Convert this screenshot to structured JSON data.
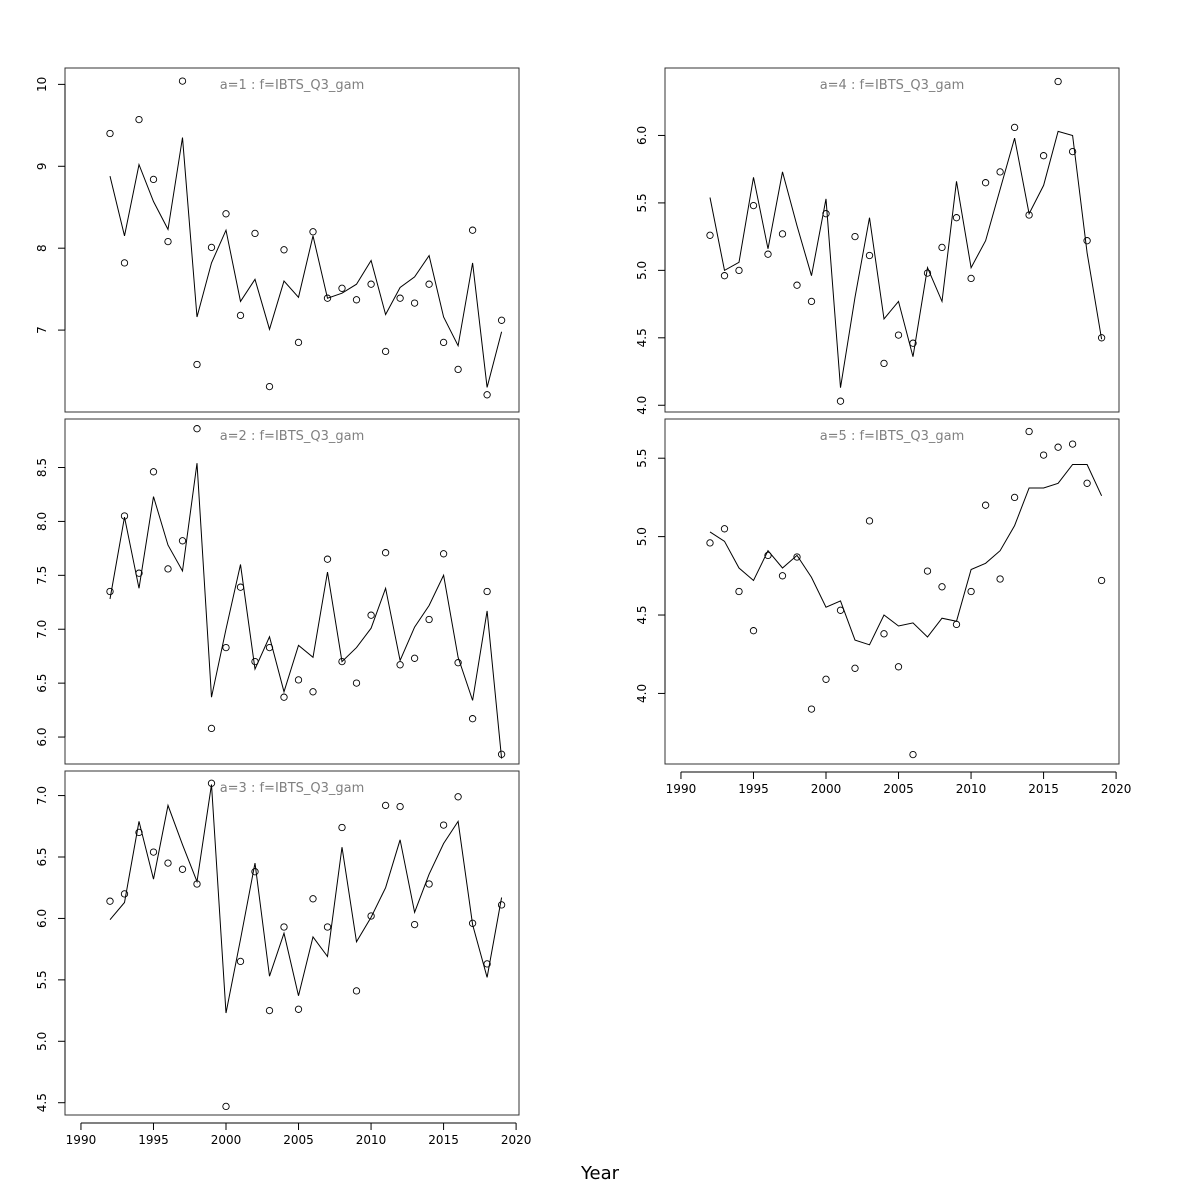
{
  "chart_data": {
    "type": "line",
    "xlabel": "Year",
    "x": [
      1992,
      1993,
      1994,
      1995,
      1996,
      1997,
      1998,
      1999,
      2000,
      2001,
      2002,
      2003,
      2004,
      2005,
      2006,
      2007,
      2008,
      2009,
      2010,
      2011,
      2012,
      2013,
      2014,
      2015,
      2016,
      2017,
      2018,
      2019
    ],
    "xticks": [
      1990,
      1995,
      2000,
      2005,
      2010,
      2015,
      2020
    ],
    "panels": [
      {
        "title": "a=1  :  f=IBTS_Q3_gam",
        "ylim": [
          6.0,
          10.2
        ],
        "yticks": [
          7,
          8,
          9,
          10
        ],
        "show_x_axis": false,
        "observed": [
          9.4,
          7.82,
          9.57,
          8.84,
          8.08,
          10.04,
          6.58,
          8.01,
          8.42,
          7.18,
          8.18,
          6.31,
          7.98,
          6.85,
          8.2,
          7.39,
          7.51,
          7.37,
          7.56,
          6.74,
          7.39,
          7.33,
          7.56,
          6.85,
          6.52,
          8.22,
          6.21,
          7.12
        ],
        "fitted": [
          8.88,
          8.15,
          9.02,
          8.57,
          8.23,
          9.35,
          7.16,
          7.82,
          8.22,
          7.35,
          7.62,
          7.01,
          7.6,
          7.4,
          8.15,
          7.39,
          7.45,
          7.56,
          7.85,
          7.19,
          7.52,
          7.65,
          7.91,
          7.16,
          6.81,
          7.82,
          6.3,
          6.98
        ]
      },
      {
        "title": "a=2  :  f=IBTS_Q3_gam",
        "ylim": [
          5.75,
          8.95
        ],
        "yticks": [
          6.0,
          6.5,
          7.0,
          7.5,
          8.0,
          8.5
        ],
        "show_x_axis": false,
        "observed": [
          7.35,
          8.05,
          7.52,
          8.46,
          7.56,
          7.82,
          8.86,
          6.08,
          6.83,
          7.39,
          6.7,
          6.83,
          6.37,
          6.53,
          6.42,
          7.65,
          6.7,
          6.5,
          7.13,
          7.71,
          6.67,
          6.73,
          7.09,
          7.7,
          6.69,
          6.17,
          7.35,
          5.84
        ],
        "fitted": [
          7.28,
          8.04,
          7.38,
          8.23,
          7.78,
          7.54,
          8.54,
          6.37,
          7.0,
          7.6,
          6.63,
          6.93,
          6.42,
          6.85,
          6.74,
          7.53,
          6.7,
          6.83,
          7.01,
          7.38,
          6.71,
          7.02,
          7.22,
          7.5,
          6.74,
          6.34,
          7.17,
          5.8
        ]
      },
      {
        "title": "a=3  :  f=IBTS_Q3_gam",
        "ylim": [
          4.4,
          7.2
        ],
        "yticks": [
          4.5,
          5.0,
          5.5,
          6.0,
          6.5,
          7.0
        ],
        "show_x_axis": true,
        "observed": [
          6.14,
          6.2,
          6.7,
          6.54,
          6.45,
          6.4,
          6.28,
          7.1,
          4.47,
          5.65,
          6.38,
          5.25,
          5.93,
          5.26,
          6.16,
          5.93,
          6.74,
          5.41,
          6.02,
          6.92,
          6.91,
          5.95,
          6.28,
          6.76,
          6.99,
          5.96,
          5.63,
          6.11
        ],
        "fitted": [
          5.99,
          6.13,
          6.79,
          6.32,
          6.92,
          6.6,
          6.3,
          7.09,
          5.23,
          5.83,
          6.45,
          5.53,
          5.88,
          5.37,
          5.85,
          5.69,
          6.58,
          5.81,
          6.01,
          6.25,
          6.64,
          6.05,
          6.36,
          6.61,
          6.79,
          5.95,
          5.52,
          6.17
        ]
      },
      {
        "title": "a=4  :  f=IBTS_Q3_gam",
        "ylim": [
          3.95,
          6.5
        ],
        "yticks": [
          4.0,
          4.5,
          5.0,
          5.5,
          6.0
        ],
        "show_x_axis": false,
        "observed": [
          5.26,
          4.96,
          5.0,
          5.48,
          5.12,
          5.27,
          4.89,
          4.77,
          5.42,
          4.03,
          5.25,
          5.11,
          4.31,
          4.52,
          4.46,
          4.98,
          5.17,
          5.39,
          4.94,
          5.65,
          5.73,
          6.06,
          5.41,
          5.85,
          6.4,
          5.88,
          5.22,
          4.5
        ],
        "fitted": [
          5.54,
          5.0,
          5.06,
          5.69,
          5.16,
          5.73,
          5.33,
          4.96,
          5.53,
          4.13,
          4.8,
          5.39,
          4.64,
          4.77,
          4.36,
          5.02,
          4.77,
          5.66,
          5.02,
          5.22,
          5.6,
          5.98,
          5.42,
          5.63,
          6.03,
          6.0,
          5.13,
          4.49
        ]
      },
      {
        "title": "a=5  :  f=IBTS_Q3_gam",
        "ylim": [
          3.55,
          5.75
        ],
        "yticks": [
          4.0,
          4.5,
          5.0,
          5.5
        ],
        "show_x_axis": true,
        "observed": [
          4.96,
          5.05,
          4.65,
          4.4,
          4.88,
          4.75,
          4.87,
          3.9,
          4.09,
          4.53,
          4.16,
          5.1,
          4.38,
          4.17,
          3.61,
          4.78,
          4.68,
          4.44,
          4.65,
          5.2,
          4.73,
          5.25,
          5.67,
          5.52,
          5.57,
          5.59,
          5.34,
          4.72
        ],
        "fitted": [
          5.03,
          4.97,
          4.8,
          4.72,
          4.91,
          4.8,
          4.88,
          4.74,
          4.55,
          4.59,
          4.34,
          4.31,
          4.5,
          4.43,
          4.45,
          4.36,
          4.48,
          4.46,
          4.79,
          4.83,
          4.91,
          5.07,
          5.31,
          5.31,
          5.34,
          5.46,
          5.46,
          5.26
        ]
      }
    ]
  }
}
